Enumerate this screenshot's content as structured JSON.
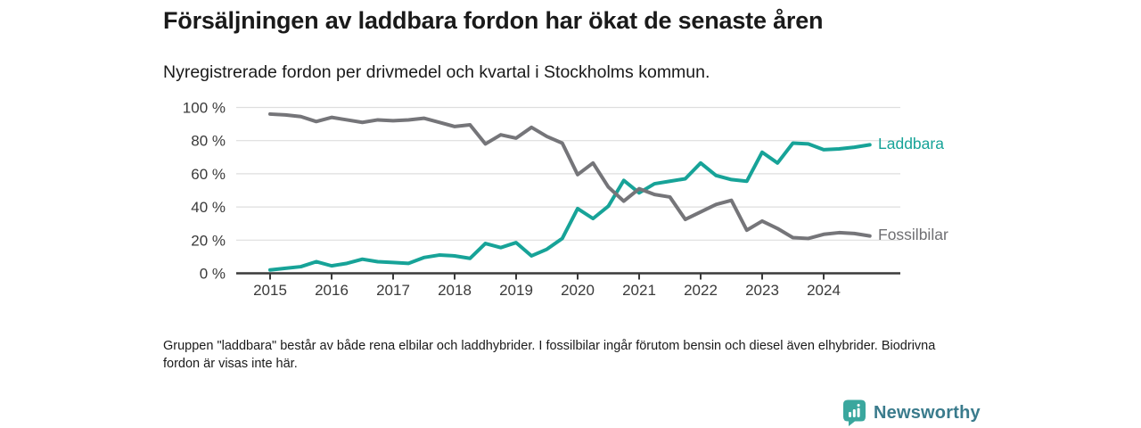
{
  "header": {
    "title": "Försäljningen av laddbara fordon har ökat de senaste åren",
    "subtitle": "Nyregistrerade fordon per drivmedel och kvartal i Stockholms kommun."
  },
  "footnote": "Gruppen \"laddbara\" består av både rena elbilar och laddhybrider. I fossilbilar ingår förutom bensin och diesel även elhybrider. Biodrivna fordon är visas inte här.",
  "logo": {
    "name": "Newsworthy"
  },
  "chart_data": {
    "type": "line",
    "x_unit": "quarterly, 2015 Q1 – 2024 Q4",
    "x_tick_labels": [
      "2015",
      "2016",
      "2017",
      "2018",
      "2019",
      "2020",
      "2021",
      "2022",
      "2023",
      "2024"
    ],
    "y_tick_labels": [
      "0 %",
      "20 %",
      "40 %",
      "60 %",
      "80 %",
      "100 %"
    ],
    "ylim": [
      0,
      100
    ],
    "grid": true,
    "legend_position": "right-of-line-end",
    "colors": {
      "laddbara": "#17a398",
      "fossilbilar": "#757579",
      "axis": "#3a3a3a",
      "gridline": "#dedede"
    },
    "series": [
      {
        "name": "Laddbara",
        "color": "#17a398",
        "values": [
          2,
          3,
          4,
          7,
          4.5,
          6,
          8.5,
          7,
          6.5,
          6,
          9.5,
          11,
          10.5,
          9,
          18,
          15.5,
          18.5,
          10.5,
          14.5,
          21,
          39,
          33,
          40.5,
          56,
          48.5,
          54,
          55.5,
          57,
          66.5,
          59,
          56.5,
          55.5,
          73,
          66.5,
          78.5,
          78,
          74.5,
          75,
          76,
          77.5
        ]
      },
      {
        "name": "Fossilbilar",
        "color": "#757579",
        "values": [
          96,
          95.5,
          94.5,
          91.5,
          94,
          92.5,
          91,
          92.5,
          92,
          92.5,
          93.5,
          91,
          88.5,
          89.5,
          78,
          83.5,
          81.5,
          88,
          82.5,
          78.5,
          59.5,
          66.5,
          52,
          43.5,
          51,
          47.5,
          46,
          32.5,
          37,
          41.5,
          44,
          26,
          31.5,
          27,
          21.5,
          21,
          23.5,
          24.5,
          24,
          22.5
        ]
      }
    ]
  }
}
